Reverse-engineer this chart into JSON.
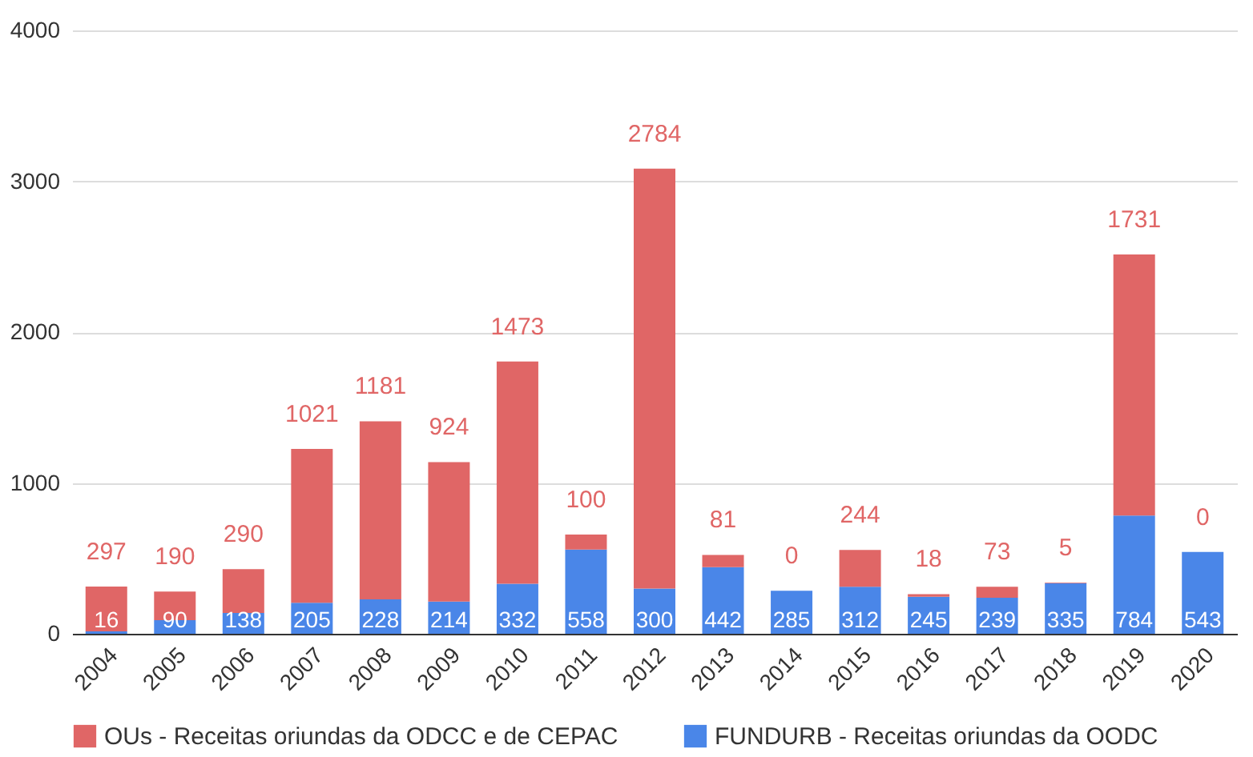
{
  "chart_data": {
    "type": "bar",
    "stacked": true,
    "data_labels": true,
    "categories": [
      "2004",
      "2005",
      "2006",
      "2007",
      "2008",
      "2009",
      "2010",
      "2011",
      "2012",
      "2013",
      "2014",
      "2015",
      "2016",
      "2017",
      "2018",
      "2019",
      "2020"
    ],
    "series": [
      {
        "name": "FUNDURB - Receitas oriundas da OODC",
        "color": "#4a86e8",
        "values": [
          16,
          90,
          138,
          205,
          228,
          214,
          332,
          558,
          300,
          442,
          285,
          312,
          245,
          239,
          335,
          784,
          543
        ]
      },
      {
        "name": "OUs - Receitas oriundas da ODCC e de CEPAC",
        "color": "#e06666",
        "values": [
          297,
          190,
          290,
          1021,
          1181,
          924,
          1473,
          100,
          2784,
          81,
          0,
          244,
          18,
          73,
          5,
          1731,
          0
        ]
      }
    ],
    "ylim": [
      0,
      4000
    ],
    "yticks": [
      0,
      1000,
      2000,
      3000,
      4000
    ],
    "grid": "y",
    "legend": "bottom"
  }
}
